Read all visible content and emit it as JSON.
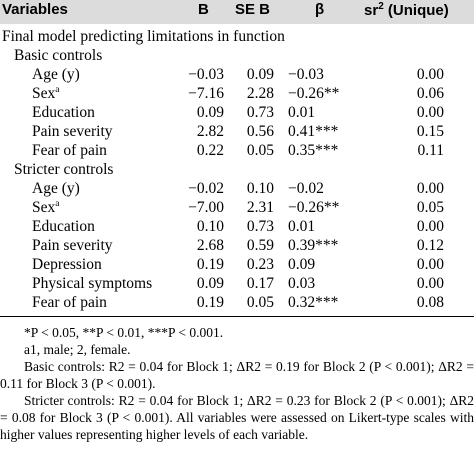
{
  "header": {
    "variables": "Variables",
    "b": "B",
    "seb": "SE B",
    "beta": "β",
    "sr_base": "sr",
    "sr_sup": "2",
    "sr_suffix": " (Unique)"
  },
  "section_title": "Final model predicting limitations in function",
  "groups": [
    {
      "title": "Basic controls",
      "rows": [
        {
          "var": "Age (y)",
          "sup": "",
          "b": "−0.03",
          "seb": "0.09",
          "beta": "−0.03",
          "sr": "0.00"
        },
        {
          "var": "Sex",
          "sup": "a",
          "b": "−7.16",
          "seb": "2.28",
          "beta": "−0.26**",
          "sr": "0.06"
        },
        {
          "var": "Education",
          "sup": "",
          "b": "0.09",
          "seb": "0.73",
          "beta": "0.01",
          "sr": "0.00"
        },
        {
          "var": "Pain severity",
          "sup": "",
          "b": "2.82",
          "seb": "0.56",
          "beta": "0.41***",
          "sr": "0.15"
        },
        {
          "var": "Fear of pain",
          "sup": "",
          "b": "0.22",
          "seb": "0.05",
          "beta": "0.35***",
          "sr": "0.11"
        }
      ]
    },
    {
      "title": "Stricter controls",
      "rows": [
        {
          "var": "Age (y)",
          "sup": "",
          "b": "−0.02",
          "seb": "0.10",
          "beta": "−0.02",
          "sr": "0.00"
        },
        {
          "var": "Sex",
          "sup": "a",
          "b": "−7.00",
          "seb": "2.31",
          "beta": "−0.26**",
          "sr": "0.05"
        },
        {
          "var": "Education",
          "sup": "",
          "b": "0.10",
          "seb": "0.73",
          "beta": "0.01",
          "sr": "0.00"
        },
        {
          "var": "Pain severity",
          "sup": "",
          "b": "2.68",
          "seb": "0.59",
          "beta": "0.39***",
          "sr": "0.12"
        },
        {
          "var": "Depression",
          "sup": "",
          "b": "0.19",
          "seb": "0.23",
          "beta": "0.09",
          "sr": "0.00"
        },
        {
          "var": "Physical symptoms",
          "sup": "",
          "b": "0.09",
          "seb": "0.17",
          "beta": "0.03",
          "sr": "0.00"
        },
        {
          "var": "Fear of pain",
          "sup": "",
          "b": "0.19",
          "seb": "0.05",
          "beta": "0.32***",
          "sr": "0.08"
        }
      ]
    }
  ],
  "notes": {
    "significance": "*P < 0.05, **P < 0.01, ***P < 0.001.",
    "sex_coding": "a1, male; 2, female.",
    "basic": "Basic controls: R2 = 0.04 for Block 1; ΔR2 = 0.19 for Block 2 (P < 0.001); ΔR2 = 0.11 for Block 3 (P < 0.001).",
    "stricter": "Stricter controls: R2 = 0.04 for Block 1; ΔR2 = 0.23 for Block 2 (P < 0.001); ΔR2 = 0.08 for Block 3 (P < 0.001). All variables were assessed on Likert-type scales with higher values representing higher levels of each variable."
  }
}
